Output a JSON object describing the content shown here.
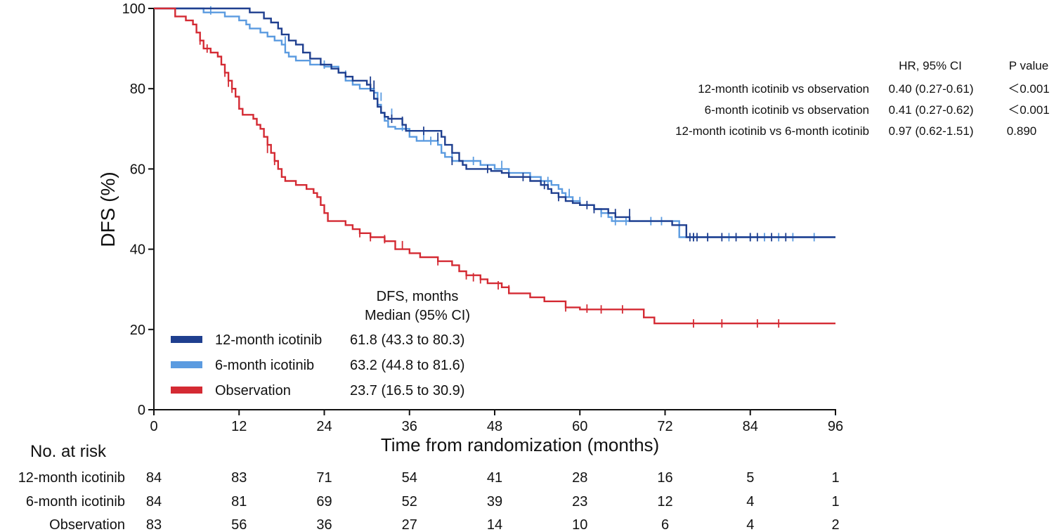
{
  "chart_data": {
    "type": "line",
    "subtype": "kaplan-meier step",
    "xlabel": "Time from randomization (months)",
    "ylabel": "DFS (%)",
    "xlim": [
      0,
      96
    ],
    "ylim": [
      0,
      100
    ],
    "xticks": [
      0,
      12,
      24,
      36,
      48,
      60,
      72,
      84,
      96
    ],
    "yticks": [
      0,
      20,
      40,
      60,
      80,
      100
    ],
    "grid": false,
    "series": [
      {
        "name": "12-month icotinib",
        "color": "#1f3f8f",
        "median": "61.8 (43.3 to 80.3)",
        "steps": [
          [
            0,
            100
          ],
          [
            8,
            100
          ],
          [
            13.5,
            99
          ],
          [
            15.5,
            97.5
          ],
          [
            16.5,
            96.5
          ],
          [
            17.5,
            95
          ],
          [
            18,
            93.5
          ],
          [
            19,
            92
          ],
          [
            20,
            91
          ],
          [
            21,
            89
          ],
          [
            22,
            87.5
          ],
          [
            23.5,
            86
          ],
          [
            25,
            85
          ],
          [
            26,
            84
          ],
          [
            27,
            83
          ],
          [
            28,
            82
          ],
          [
            30,
            81
          ],
          [
            30.5,
            79.5
          ],
          [
            31,
            77.5
          ],
          [
            31.5,
            75.5
          ],
          [
            32,
            74
          ],
          [
            32.5,
            73
          ],
          [
            33,
            72.5
          ],
          [
            35,
            71
          ],
          [
            35.5,
            69.5
          ],
          [
            39,
            69.5
          ],
          [
            40.5,
            68
          ],
          [
            41,
            66
          ],
          [
            42,
            64
          ],
          [
            43,
            62
          ],
          [
            43.5,
            61
          ],
          [
            44,
            60
          ],
          [
            47.5,
            59.5
          ],
          [
            49,
            59
          ],
          [
            50,
            58
          ],
          [
            53,
            57
          ],
          [
            54.5,
            56
          ],
          [
            55.5,
            55
          ],
          [
            56,
            54
          ],
          [
            57,
            53
          ],
          [
            58,
            52
          ],
          [
            59,
            51.5
          ],
          [
            60,
            51
          ],
          [
            62,
            50
          ],
          [
            64,
            49
          ],
          [
            65,
            48
          ],
          [
            67,
            47
          ],
          [
            73,
            46
          ],
          [
            75,
            43
          ],
          [
            96,
            43
          ]
        ],
        "censors": [
          [
            30.5,
            82
          ],
          [
            31,
            81
          ],
          [
            33.5,
            72.5
          ],
          [
            35,
            72
          ],
          [
            38,
            69.5
          ],
          [
            40,
            68
          ],
          [
            42,
            62
          ],
          [
            47,
            60
          ],
          [
            52,
            58
          ],
          [
            55,
            56
          ],
          [
            57,
            53
          ],
          [
            61,
            51
          ],
          [
            62,
            50
          ],
          [
            65,
            49
          ],
          [
            67,
            49
          ],
          [
            75.5,
            43
          ],
          [
            76,
            43
          ],
          [
            76.5,
            43
          ],
          [
            78,
            43
          ],
          [
            80,
            43
          ],
          [
            82,
            43
          ],
          [
            84,
            43
          ],
          [
            85,
            43
          ],
          [
            87,
            43
          ],
          [
            89,
            43
          ]
        ]
      },
      {
        "name": "6-month icotinib",
        "color": "#5b9be0",
        "median": "63.2 (44.8 to 81.6)",
        "steps": [
          [
            0,
            100
          ],
          [
            7,
            99
          ],
          [
            10,
            98
          ],
          [
            12,
            97
          ],
          [
            13,
            96
          ],
          [
            13.5,
            95
          ],
          [
            15,
            94
          ],
          [
            16,
            93
          ],
          [
            17,
            92
          ],
          [
            18,
            91
          ],
          [
            18.5,
            89
          ],
          [
            19,
            88
          ],
          [
            20,
            87
          ],
          [
            22,
            86
          ],
          [
            24,
            85.5
          ],
          [
            26,
            84
          ],
          [
            27,
            82
          ],
          [
            28,
            81
          ],
          [
            29,
            80
          ],
          [
            31,
            79
          ],
          [
            31.5,
            76
          ],
          [
            32,
            74
          ],
          [
            32.5,
            72
          ],
          [
            33,
            70.5
          ],
          [
            34,
            70
          ],
          [
            36,
            68
          ],
          [
            37,
            67
          ],
          [
            40,
            66
          ],
          [
            40.5,
            64
          ],
          [
            41,
            63
          ],
          [
            42,
            62
          ],
          [
            46,
            61
          ],
          [
            48,
            60
          ],
          [
            50,
            59
          ],
          [
            53,
            58
          ],
          [
            54.5,
            57
          ],
          [
            56,
            56
          ],
          [
            57,
            55
          ],
          [
            57.5,
            54
          ],
          [
            58,
            53
          ],
          [
            59,
            52
          ],
          [
            60,
            51
          ],
          [
            62,
            50
          ],
          [
            63,
            49
          ],
          [
            64,
            48
          ],
          [
            64.5,
            47
          ],
          [
            68,
            47
          ],
          [
            74,
            43
          ],
          [
            96,
            43
          ]
        ],
        "censors": [
          [
            8,
            99.5
          ],
          [
            18.5,
            92
          ],
          [
            24,
            86
          ],
          [
            27,
            83.5
          ],
          [
            32,
            78
          ],
          [
            33.5,
            74
          ],
          [
            35,
            70.5
          ],
          [
            38,
            68
          ],
          [
            39,
            67
          ],
          [
            42,
            64
          ],
          [
            43,
            63
          ],
          [
            45,
            62
          ],
          [
            49,
            61
          ],
          [
            53,
            58
          ],
          [
            55.5,
            57
          ],
          [
            58.5,
            54
          ],
          [
            60,
            52
          ],
          [
            63,
            49
          ],
          [
            65,
            47
          ],
          [
            66.5,
            47
          ],
          [
            70,
            47
          ],
          [
            71.5,
            47
          ],
          [
            76,
            43
          ],
          [
            78,
            43
          ],
          [
            81,
            43
          ],
          [
            84,
            43
          ],
          [
            86,
            43
          ],
          [
            88,
            43
          ],
          [
            90,
            43
          ],
          [
            93,
            43
          ]
        ]
      },
      {
        "name": "Observation",
        "color": "#d42a33",
        "median": "23.7 (16.5 to 30.9)",
        "steps": [
          [
            0,
            100
          ],
          [
            3,
            98
          ],
          [
            4.5,
            97
          ],
          [
            5.5,
            96
          ],
          [
            6,
            94
          ],
          [
            6.5,
            92
          ],
          [
            7,
            90
          ],
          [
            8,
            89
          ],
          [
            9,
            88
          ],
          [
            9.5,
            86
          ],
          [
            10,
            84
          ],
          [
            10.5,
            82
          ],
          [
            11,
            80
          ],
          [
            11.5,
            78
          ],
          [
            12,
            75
          ],
          [
            12.5,
            73.5
          ],
          [
            14,
            72.5
          ],
          [
            14.5,
            71
          ],
          [
            15,
            70
          ],
          [
            15.5,
            68
          ],
          [
            16,
            66
          ],
          [
            16.5,
            64
          ],
          [
            17,
            62
          ],
          [
            17.5,
            60
          ],
          [
            18,
            58
          ],
          [
            18.5,
            57
          ],
          [
            20,
            56
          ],
          [
            21.5,
            55
          ],
          [
            22.5,
            54
          ],
          [
            23,
            53
          ],
          [
            23.5,
            51
          ],
          [
            24,
            49
          ],
          [
            24.5,
            47
          ],
          [
            27,
            46
          ],
          [
            28,
            45
          ],
          [
            29,
            44
          ],
          [
            30.5,
            43
          ],
          [
            32.5,
            42
          ],
          [
            34,
            40
          ],
          [
            36,
            39
          ],
          [
            37.5,
            38
          ],
          [
            40,
            37
          ],
          [
            42,
            36
          ],
          [
            43,
            34.5
          ],
          [
            44,
            33.5
          ],
          [
            46,
            32.5
          ],
          [
            47,
            31.5
          ],
          [
            49,
            30.5
          ],
          [
            50,
            29
          ],
          [
            53,
            28
          ],
          [
            55,
            27
          ],
          [
            58,
            25.5
          ],
          [
            60,
            25
          ],
          [
            69,
            23
          ],
          [
            70.5,
            21.5
          ],
          [
            96,
            21.5
          ]
        ],
        "censors": [
          [
            6.5,
            92
          ],
          [
            7.5,
            90
          ],
          [
            10,
            84
          ],
          [
            10.5,
            81.5
          ],
          [
            11,
            80
          ],
          [
            16,
            65
          ],
          [
            17,
            62
          ],
          [
            29,
            44
          ],
          [
            30.5,
            43
          ],
          [
            32.5,
            42.5
          ],
          [
            35,
            41
          ],
          [
            40,
            37
          ],
          [
            44,
            33.5
          ],
          [
            45,
            33
          ],
          [
            46,
            32.5
          ],
          [
            48.5,
            31
          ],
          [
            50,
            30
          ],
          [
            58,
            25.5
          ],
          [
            61,
            25.2
          ],
          [
            63,
            25
          ],
          [
            66,
            25
          ],
          [
            76,
            21.5
          ],
          [
            80,
            21.5
          ],
          [
            85,
            21.5
          ],
          [
            88,
            21.5
          ]
        ]
      }
    ]
  },
  "legend": {
    "header_line1": "DFS, months",
    "header_line2": "Median (95% CI)"
  },
  "hr_table": {
    "col_hr": "HR, 95% CI",
    "col_p": "P value",
    "rows": [
      {
        "label": "12-month icotinib vs observation",
        "hr": "0.40 (0.27-0.61)",
        "p": "＜0.001"
      },
      {
        "label": "6-month icotinib vs observation",
        "hr": "0.41 (0.27-0.62)",
        "p": "＜0.001"
      },
      {
        "label": "12-month icotinib vs 6-month icotinib",
        "hr": "0.97 (0.62-1.51)",
        "p": "0.890"
      }
    ]
  },
  "risk_table": {
    "title": "No. at risk",
    "rows": [
      {
        "label": "12-month icotinib",
        "values": [
          "84",
          "83",
          "71",
          "54",
          "41",
          "28",
          "16",
          "5",
          "1"
        ]
      },
      {
        "label": "6-month icotinib",
        "values": [
          "84",
          "81",
          "69",
          "52",
          "39",
          "23",
          "12",
          "4",
          "1"
        ]
      },
      {
        "label": "Observation",
        "values": [
          "83",
          "56",
          "36",
          "27",
          "14",
          "10",
          "6",
          "4",
          "2"
        ]
      }
    ]
  }
}
